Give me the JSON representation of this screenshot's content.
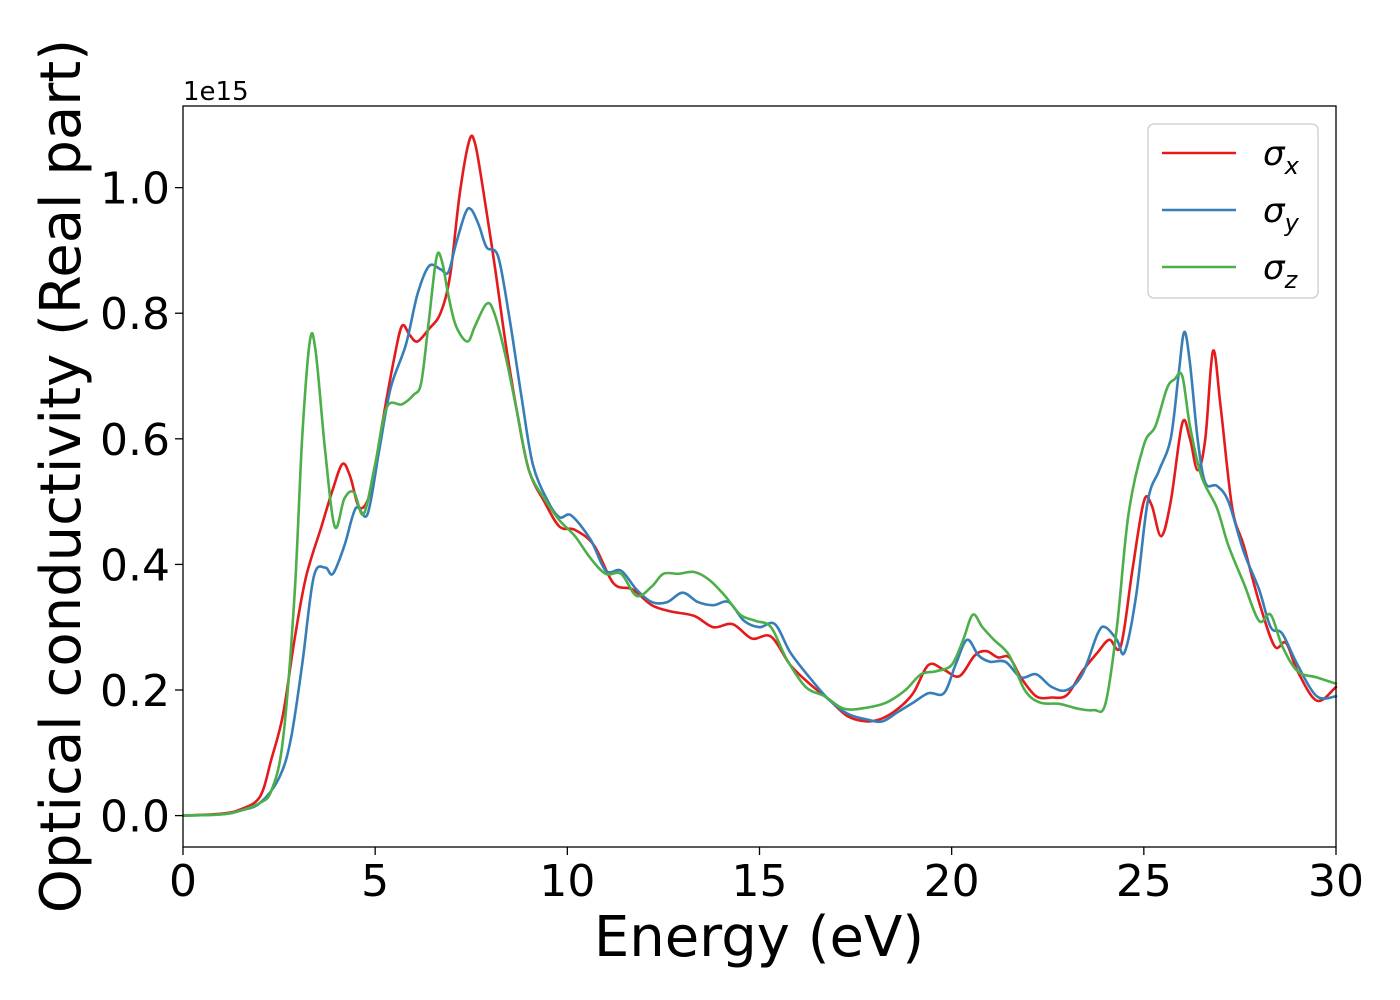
{
  "chart_data": {
    "type": "line",
    "title": "",
    "xlabel": "Energy (eV)",
    "ylabel": "Optical conductivity (Real part)",
    "y_offset_label": "1e15",
    "xlim": [
      0,
      30
    ],
    "ylim": [
      -0.05,
      1.13
    ],
    "xticks": [
      "0",
      "5",
      "10",
      "15",
      "20",
      "25",
      "30"
    ],
    "yticks": [
      "0.0",
      "0.2",
      "0.4",
      "0.6",
      "0.8",
      "1.0"
    ],
    "grid": false,
    "legend_position": "upper right",
    "series": [
      {
        "name": "σx",
        "legend_symbol": "σ",
        "legend_subscript": "x",
        "color": "#e41a1c",
        "points": [
          [
            0,
            0
          ],
          [
            1,
            0.003
          ],
          [
            1.5,
            0.01
          ],
          [
            2,
            0.03
          ],
          [
            2.3,
            0.09
          ],
          [
            2.6,
            0.16
          ],
          [
            2.9,
            0.28
          ],
          [
            3.2,
            0.38
          ],
          [
            3.6,
            0.46
          ],
          [
            3.9,
            0.52
          ],
          [
            4.15,
            0.56
          ],
          [
            4.35,
            0.54
          ],
          [
            4.6,
            0.49
          ],
          [
            4.9,
            0.52
          ],
          [
            5.2,
            0.63
          ],
          [
            5.5,
            0.73
          ],
          [
            5.7,
            0.78
          ],
          [
            5.9,
            0.765
          ],
          [
            6.1,
            0.755
          ],
          [
            6.4,
            0.775
          ],
          [
            6.7,
            0.8
          ],
          [
            6.95,
            0.86
          ],
          [
            7.2,
            0.99
          ],
          [
            7.45,
            1.075
          ],
          [
            7.6,
            1.07
          ],
          [
            7.8,
            1.0
          ],
          [
            8.1,
            0.88
          ],
          [
            8.4,
            0.75
          ],
          [
            8.7,
            0.64
          ],
          [
            9.0,
            0.55
          ],
          [
            9.4,
            0.5
          ],
          [
            9.8,
            0.46
          ],
          [
            10.2,
            0.455
          ],
          [
            10.7,
            0.43
          ],
          [
            11.2,
            0.37
          ],
          [
            11.7,
            0.36
          ],
          [
            12.2,
            0.335
          ],
          [
            12.7,
            0.325
          ],
          [
            13.3,
            0.318
          ],
          [
            13.8,
            0.3
          ],
          [
            14.3,
            0.305
          ],
          [
            14.8,
            0.282
          ],
          [
            15.3,
            0.285
          ],
          [
            15.8,
            0.24
          ],
          [
            16.3,
            0.21
          ],
          [
            16.8,
            0.185
          ],
          [
            17.3,
            0.158
          ],
          [
            17.8,
            0.15
          ],
          [
            18.2,
            0.155
          ],
          [
            18.6,
            0.17
          ],
          [
            19.0,
            0.195
          ],
          [
            19.4,
            0.24
          ],
          [
            19.8,
            0.232
          ],
          [
            20.2,
            0.222
          ],
          [
            20.6,
            0.255
          ],
          [
            20.9,
            0.262
          ],
          [
            21.2,
            0.252
          ],
          [
            21.5,
            0.252
          ],
          [
            21.8,
            0.22
          ],
          [
            22.2,
            0.19
          ],
          [
            22.6,
            0.188
          ],
          [
            23.0,
            0.192
          ],
          [
            23.4,
            0.23
          ],
          [
            23.8,
            0.26
          ],
          [
            24.1,
            0.28
          ],
          [
            24.4,
            0.27
          ],
          [
            24.7,
            0.39
          ],
          [
            25.0,
            0.5
          ],
          [
            25.2,
            0.495
          ],
          [
            25.45,
            0.445
          ],
          [
            25.7,
            0.5
          ],
          [
            26.0,
            0.625
          ],
          [
            26.2,
            0.6
          ],
          [
            26.4,
            0.55
          ],
          [
            26.6,
            0.6
          ],
          [
            26.8,
            0.74
          ],
          [
            27.0,
            0.65
          ],
          [
            27.3,
            0.49
          ],
          [
            27.6,
            0.43
          ],
          [
            28.0,
            0.34
          ],
          [
            28.4,
            0.27
          ],
          [
            28.7,
            0.275
          ],
          [
            29.0,
            0.23
          ],
          [
            29.5,
            0.183
          ],
          [
            30,
            0.205
          ]
        ]
      },
      {
        "name": "σy",
        "legend_symbol": "σ",
        "legend_subscript": "y",
        "color": "#377eb8",
        "points": [
          [
            0,
            0
          ],
          [
            1,
            0.002
          ],
          [
            1.5,
            0.008
          ],
          [
            2,
            0.02
          ],
          [
            2.5,
            0.06
          ],
          [
            2.8,
            0.12
          ],
          [
            3.1,
            0.24
          ],
          [
            3.4,
            0.38
          ],
          [
            3.7,
            0.395
          ],
          [
            3.9,
            0.385
          ],
          [
            4.2,
            0.43
          ],
          [
            4.5,
            0.49
          ],
          [
            4.8,
            0.48
          ],
          [
            5.1,
            0.58
          ],
          [
            5.4,
            0.68
          ],
          [
            5.8,
            0.75
          ],
          [
            6.1,
            0.83
          ],
          [
            6.4,
            0.875
          ],
          [
            6.7,
            0.87
          ],
          [
            6.9,
            0.865
          ],
          [
            7.1,
            0.91
          ],
          [
            7.35,
            0.96
          ],
          [
            7.5,
            0.965
          ],
          [
            7.7,
            0.94
          ],
          [
            7.9,
            0.905
          ],
          [
            8.2,
            0.89
          ],
          [
            8.5,
            0.79
          ],
          [
            8.8,
            0.67
          ],
          [
            9.1,
            0.56
          ],
          [
            9.5,
            0.5
          ],
          [
            9.8,
            0.475
          ],
          [
            10.1,
            0.478
          ],
          [
            10.6,
            0.44
          ],
          [
            11.0,
            0.39
          ],
          [
            11.4,
            0.39
          ],
          [
            11.8,
            0.36
          ],
          [
            12.2,
            0.34
          ],
          [
            12.6,
            0.34
          ],
          [
            13.0,
            0.355
          ],
          [
            13.4,
            0.34
          ],
          [
            13.8,
            0.335
          ],
          [
            14.2,
            0.34
          ],
          [
            14.6,
            0.31
          ],
          [
            15.0,
            0.3
          ],
          [
            15.4,
            0.305
          ],
          [
            15.8,
            0.26
          ],
          [
            16.3,
            0.22
          ],
          [
            16.8,
            0.185
          ],
          [
            17.3,
            0.162
          ],
          [
            17.8,
            0.153
          ],
          [
            18.2,
            0.15
          ],
          [
            18.6,
            0.165
          ],
          [
            19.0,
            0.18
          ],
          [
            19.4,
            0.195
          ],
          [
            19.8,
            0.195
          ],
          [
            20.1,
            0.24
          ],
          [
            20.4,
            0.28
          ],
          [
            20.7,
            0.255
          ],
          [
            21.0,
            0.245
          ],
          [
            21.4,
            0.245
          ],
          [
            21.8,
            0.22
          ],
          [
            22.2,
            0.225
          ],
          [
            22.6,
            0.205
          ],
          [
            23.0,
            0.2
          ],
          [
            23.4,
            0.225
          ],
          [
            23.8,
            0.29
          ],
          [
            24.0,
            0.3
          ],
          [
            24.3,
            0.28
          ],
          [
            24.5,
            0.26
          ],
          [
            24.8,
            0.35
          ],
          [
            25.1,
            0.5
          ],
          [
            25.4,
            0.55
          ],
          [
            25.7,
            0.6
          ],
          [
            25.9,
            0.7
          ],
          [
            26.05,
            0.77
          ],
          [
            26.2,
            0.72
          ],
          [
            26.4,
            0.6
          ],
          [
            26.6,
            0.53
          ],
          [
            26.9,
            0.525
          ],
          [
            27.2,
            0.5
          ],
          [
            27.6,
            0.42
          ],
          [
            28.0,
            0.36
          ],
          [
            28.3,
            0.3
          ],
          [
            28.6,
            0.29
          ],
          [
            29.0,
            0.24
          ],
          [
            29.5,
            0.19
          ],
          [
            30,
            0.19
          ]
        ]
      },
      {
        "name": "σz",
        "legend_symbol": "σ",
        "legend_subscript": "z",
        "color": "#4daf4a",
        "points": [
          [
            0,
            0
          ],
          [
            1,
            0.002
          ],
          [
            1.5,
            0.008
          ],
          [
            2,
            0.02
          ],
          [
            2.3,
            0.04
          ],
          [
            2.6,
            0.12
          ],
          [
            2.9,
            0.35
          ],
          [
            3.1,
            0.6
          ],
          [
            3.3,
            0.755
          ],
          [
            3.45,
            0.74
          ],
          [
            3.7,
            0.58
          ],
          [
            3.95,
            0.46
          ],
          [
            4.2,
            0.505
          ],
          [
            4.45,
            0.515
          ],
          [
            4.7,
            0.48
          ],
          [
            5.0,
            0.56
          ],
          [
            5.3,
            0.65
          ],
          [
            5.7,
            0.655
          ],
          [
            6.0,
            0.67
          ],
          [
            6.2,
            0.69
          ],
          [
            6.4,
            0.79
          ],
          [
            6.6,
            0.89
          ],
          [
            6.75,
            0.88
          ],
          [
            6.9,
            0.83
          ],
          [
            7.1,
            0.78
          ],
          [
            7.4,
            0.755
          ],
          [
            7.6,
            0.78
          ],
          [
            7.9,
            0.815
          ],
          [
            8.1,
            0.8
          ],
          [
            8.4,
            0.73
          ],
          [
            8.7,
            0.64
          ],
          [
            9.0,
            0.55
          ],
          [
            9.4,
            0.505
          ],
          [
            9.8,
            0.47
          ],
          [
            10.2,
            0.445
          ],
          [
            10.6,
            0.41
          ],
          [
            11.0,
            0.385
          ],
          [
            11.4,
            0.385
          ],
          [
            11.8,
            0.35
          ],
          [
            12.2,
            0.365
          ],
          [
            12.5,
            0.385
          ],
          [
            12.9,
            0.385
          ],
          [
            13.3,
            0.388
          ],
          [
            13.7,
            0.375
          ],
          [
            14.1,
            0.35
          ],
          [
            14.5,
            0.32
          ],
          [
            14.9,
            0.31
          ],
          [
            15.3,
            0.3
          ],
          [
            15.7,
            0.25
          ],
          [
            16.2,
            0.205
          ],
          [
            16.7,
            0.19
          ],
          [
            17.2,
            0.17
          ],
          [
            17.8,
            0.172
          ],
          [
            18.3,
            0.18
          ],
          [
            18.8,
            0.2
          ],
          [
            19.2,
            0.225
          ],
          [
            19.6,
            0.23
          ],
          [
            20.0,
            0.24
          ],
          [
            20.3,
            0.28
          ],
          [
            20.55,
            0.32
          ],
          [
            20.8,
            0.3
          ],
          [
            21.1,
            0.28
          ],
          [
            21.5,
            0.255
          ],
          [
            21.9,
            0.2
          ],
          [
            22.3,
            0.18
          ],
          [
            22.8,
            0.178
          ],
          [
            23.3,
            0.17
          ],
          [
            23.7,
            0.168
          ],
          [
            24.0,
            0.178
          ],
          [
            24.3,
            0.3
          ],
          [
            24.6,
            0.48
          ],
          [
            25.0,
            0.59
          ],
          [
            25.3,
            0.62
          ],
          [
            25.6,
            0.68
          ],
          [
            25.8,
            0.695
          ],
          [
            26.0,
            0.7
          ],
          [
            26.2,
            0.62
          ],
          [
            26.5,
            0.54
          ],
          [
            26.9,
            0.49
          ],
          [
            27.2,
            0.43
          ],
          [
            27.6,
            0.37
          ],
          [
            28.0,
            0.31
          ],
          [
            28.3,
            0.32
          ],
          [
            28.6,
            0.27
          ],
          [
            29.0,
            0.23
          ],
          [
            29.5,
            0.22
          ],
          [
            30,
            0.21
          ]
        ]
      }
    ]
  }
}
